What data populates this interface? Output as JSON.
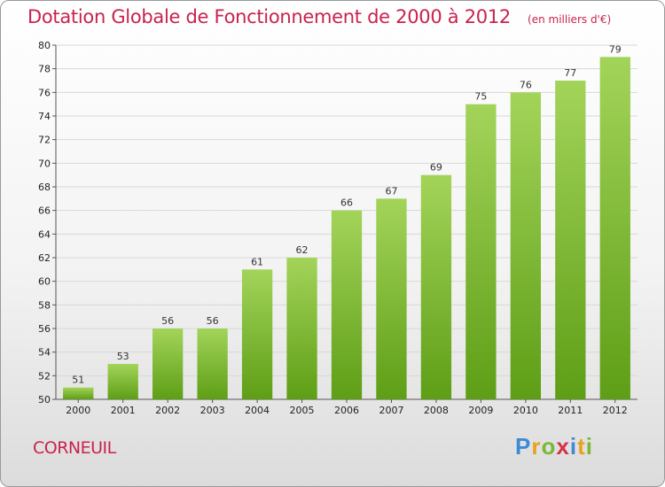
{
  "chart_data": {
    "type": "bar",
    "title": "Dotation Globale de Fonctionnement de 2000 à 2012",
    "subtitle": "(en milliers d'€)",
    "categories": [
      "2000",
      "2001",
      "2002",
      "2003",
      "2004",
      "2005",
      "2006",
      "2007",
      "2008",
      "2009",
      "2010",
      "2011",
      "2012"
    ],
    "values": [
      51,
      53,
      56,
      56,
      61,
      62,
      66,
      67,
      69,
      75,
      76,
      77,
      79
    ],
    "ylim": [
      50,
      80
    ],
    "yticks": [
      50,
      52,
      54,
      56,
      58,
      60,
      62,
      64,
      66,
      68,
      70,
      72,
      74,
      76,
      78,
      80
    ],
    "grid": true,
    "xlabel": "",
    "ylabel": "",
    "bar_color_top": "#a3d45a",
    "bar_color_bottom": "#5e9e16"
  },
  "footer": {
    "commune": "CORNEUIL",
    "brand": "Proxiti"
  },
  "colors": {
    "title": "#c8234e",
    "grid": "#d8d8d8"
  }
}
